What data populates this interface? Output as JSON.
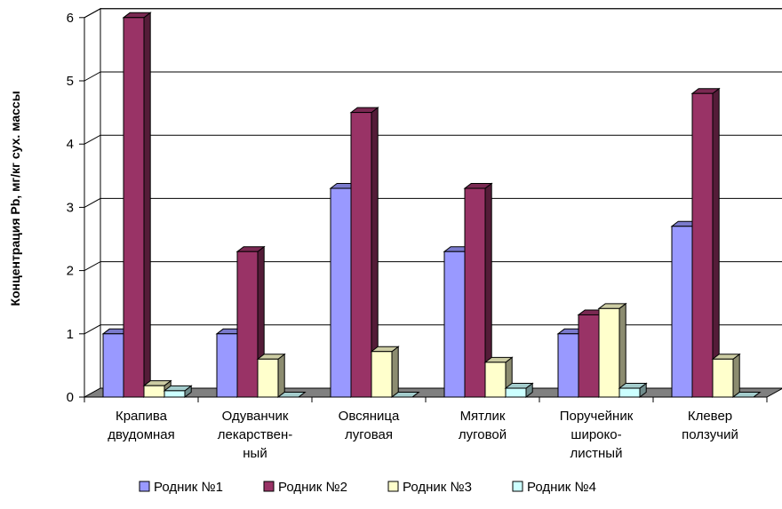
{
  "chart_data": {
    "type": "bar",
    "ylabel": "Концентрация Pb, мг/кг сух. массы",
    "ylim": [
      0,
      6
    ],
    "yticks": [
      "0",
      "1",
      "2",
      "3",
      "4",
      "5",
      "6"
    ],
    "grid": true,
    "legend_position": "bottom",
    "categories": [
      [
        "Крапива",
        "двудомная"
      ],
      [
        "Одуванчик",
        "лекарствен-",
        "ный"
      ],
      [
        "Овсяница",
        "луговая"
      ],
      [
        "Мятлик",
        "луговой"
      ],
      [
        "Поручейник",
        "широко-",
        "листный"
      ],
      [
        "Клевер",
        "ползучий"
      ]
    ],
    "series": [
      {
        "name": "Родник №1",
        "color": "#9999FF",
        "values": [
          1.0,
          1.0,
          3.3,
          2.3,
          1.0,
          2.7
        ]
      },
      {
        "name": "Родник №2",
        "color": "#993366",
        "values": [
          6.0,
          2.3,
          4.5,
          3.3,
          1.3,
          4.8
        ]
      },
      {
        "name": "Родник №3",
        "color": "#FFFFCC",
        "values": [
          0.18,
          0.6,
          0.72,
          0.55,
          1.4,
          0.6
        ]
      },
      {
        "name": "Родник №4",
        "color": "#CCFFFF",
        "values": [
          0.1,
          0.0,
          0.0,
          0.14,
          0.14,
          0.0
        ]
      }
    ]
  }
}
